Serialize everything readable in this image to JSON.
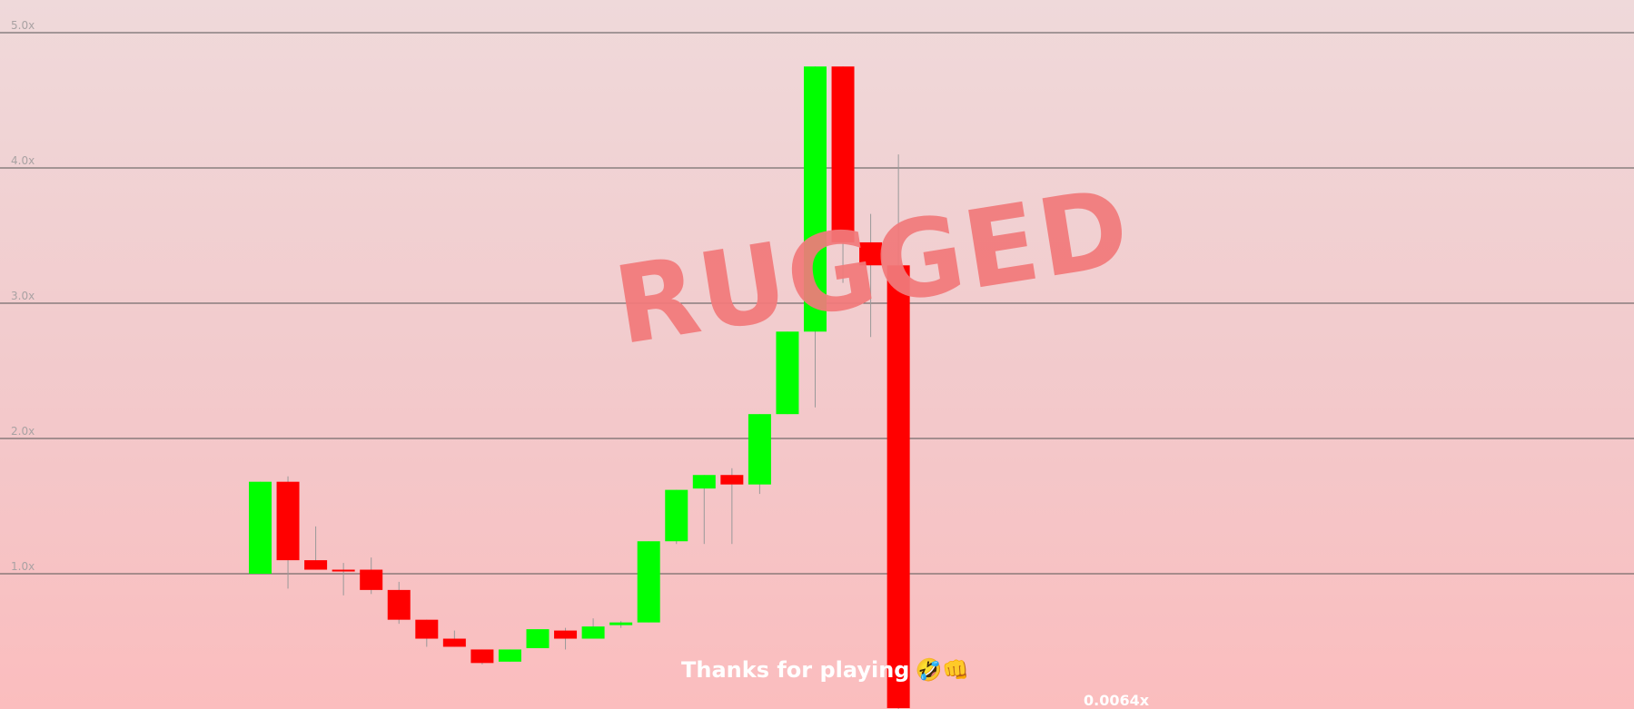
{
  "chart_data": {
    "type": "candlestick",
    "y_tick_labels": [
      "1.0x",
      "2.0x",
      "3.0x",
      "4.0x",
      "5.0x"
    ],
    "ylim": [
      0,
      5.1
    ],
    "grid": true,
    "colors": {
      "up": "#00ff00",
      "down": "#ff0000",
      "grid": "#555555",
      "tick_label": "#a9a2a3",
      "wick": "#999999"
    },
    "candles": [
      {
        "open": 1.0,
        "close": 1.68,
        "high": 1.68,
        "low": 1.0
      },
      {
        "open": 1.68,
        "close": 1.1,
        "high": 1.72,
        "low": 0.89
      },
      {
        "open": 1.1,
        "close": 1.03,
        "high": 1.35,
        "low": 1.03
      },
      {
        "open": 1.03,
        "close": 1.02,
        "high": 1.08,
        "low": 0.84
      },
      {
        "open": 1.03,
        "close": 0.88,
        "high": 1.12,
        "low": 0.85
      },
      {
        "open": 0.88,
        "close": 0.66,
        "high": 0.94,
        "low": 0.63
      },
      {
        "open": 0.66,
        "close": 0.52,
        "high": 0.66,
        "low": 0.46
      },
      {
        "open": 0.52,
        "close": 0.46,
        "high": 0.58,
        "low": 0.46
      },
      {
        "open": 0.44,
        "close": 0.34,
        "high": 0.44,
        "low": 0.33
      },
      {
        "open": 0.35,
        "close": 0.44,
        "high": 0.44,
        "low": 0.35
      },
      {
        "open": 0.45,
        "close": 0.59,
        "high": 0.59,
        "low": 0.45
      },
      {
        "open": 0.58,
        "close": 0.52,
        "high": 0.6,
        "low": 0.44
      },
      {
        "open": 0.52,
        "close": 0.61,
        "high": 0.67,
        "low": 0.52
      },
      {
        "open": 0.62,
        "close": 0.64,
        "high": 0.65,
        "low": 0.6
      },
      {
        "open": 0.64,
        "close": 1.24,
        "high": 1.24,
        "low": 0.64
      },
      {
        "open": 1.24,
        "close": 1.62,
        "high": 1.62,
        "low": 1.22
      },
      {
        "open": 1.63,
        "close": 1.73,
        "high": 1.73,
        "low": 1.22
      },
      {
        "open": 1.73,
        "close": 1.66,
        "high": 1.78,
        "low": 1.22
      },
      {
        "open": 1.66,
        "close": 2.18,
        "high": 2.18,
        "low": 1.59
      },
      {
        "open": 2.18,
        "close": 2.79,
        "high": 2.79,
        "low": 2.18
      },
      {
        "open": 2.79,
        "close": 4.75,
        "high": 4.75,
        "low": 2.23
      },
      {
        "open": 4.75,
        "close": 3.45,
        "high": 4.75,
        "low": 3.15
      },
      {
        "open": 3.45,
        "close": 3.28,
        "high": 3.66,
        "low": 2.75
      },
      {
        "open": 3.28,
        "close": 0.0064,
        "high": 4.1,
        "low": 0.0
      }
    ]
  },
  "overlay": {
    "rugged_text": "RUGGED",
    "message": "Thanks for playing",
    "message_emoji": "🤣👊",
    "current_multiplier": "0.0064x"
  }
}
